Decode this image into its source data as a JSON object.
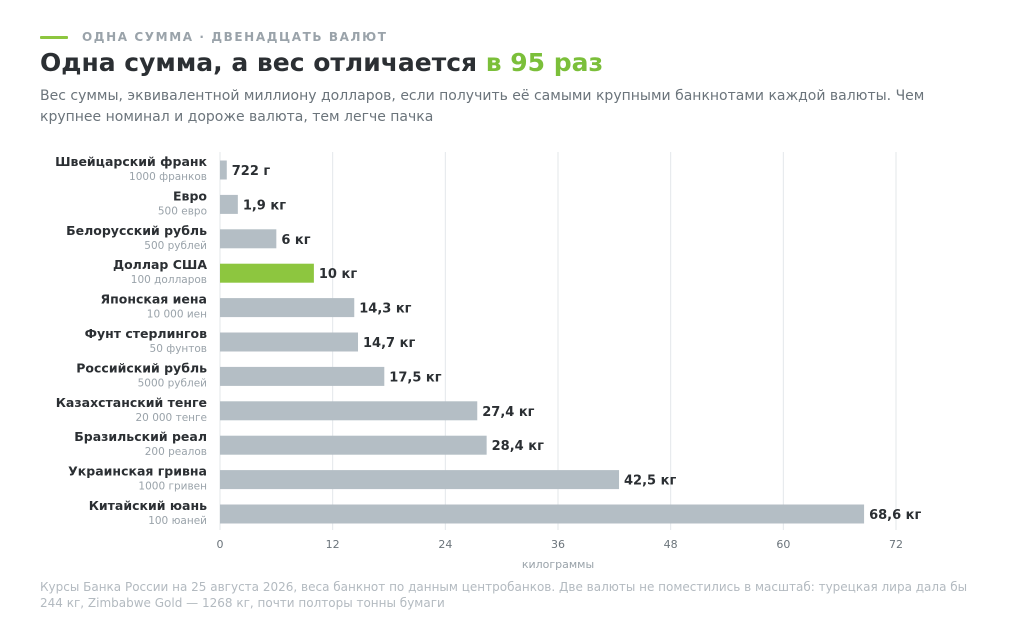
{
  "header": {
    "kicker": "ОДНА СУММА · ДВЕНАДЦАТЬ ВАЛЮТ",
    "title_main": "Одна сумма, а вес отличается ",
    "title_accent": "в 95 раз",
    "subtitle": "Вес суммы, эквивалентной миллиону долларов, если получить её самыми крупными банкнотами каждой валюты. Чем крупнее номинал и дороже валюта, тем легче пачка"
  },
  "footnote": "Курсы Банка России на 25 августа 2026, веса банкнот по данным центробанков. Две валюты не поместились в масштаб: турецкая лира дала бы 244 кг, Zimbabwe Gold — 1268 кг, почти полторы тонны бумаги",
  "colors": {
    "bar": "#b4bec5",
    "highlight": "#8dc63f",
    "accent_text": "#7bbf3a",
    "grid": "#e3e7ea",
    "label": "#2b2f33",
    "sublabel": "#9aa3aa"
  },
  "chart_data": {
    "type": "bar",
    "orientation": "horizontal",
    "xlabel": "килограммы",
    "xlim": [
      0,
      72
    ],
    "xticks": [
      "0",
      "12",
      "24",
      "36",
      "48",
      "60",
      "72"
    ],
    "grid": true,
    "highlight_category": "Доллар США",
    "categories": [
      "Швейцарский франк",
      "Евро",
      "Белорусский рубль",
      "Доллар США",
      "Японская иена",
      "Фунт стерлингов",
      "Российский рубль",
      "Казахстанский тенге",
      "Бразильский реал",
      "Украинская гривна",
      "Китайский юань"
    ],
    "denominations": [
      "1000 франков",
      "500 евро",
      "500 рублей",
      "100 долларов",
      "10 000 иен",
      "50 фунтов",
      "5000 рублей",
      "20 000 тенге",
      "200 реалов",
      "1000 гривен",
      "100 юаней"
    ],
    "values": [
      0.722,
      1.9,
      6,
      10,
      14.3,
      14.7,
      17.5,
      27.4,
      28.4,
      42.5,
      68.6
    ],
    "value_labels": [
      "722 г",
      "1,9 кг",
      "6 кг",
      "10 кг",
      "14,3 кг",
      "14,7 кг",
      "17,5 кг",
      "27,4 кг",
      "28,4 кг",
      "42,5 кг",
      "68,6 кг"
    ]
  }
}
